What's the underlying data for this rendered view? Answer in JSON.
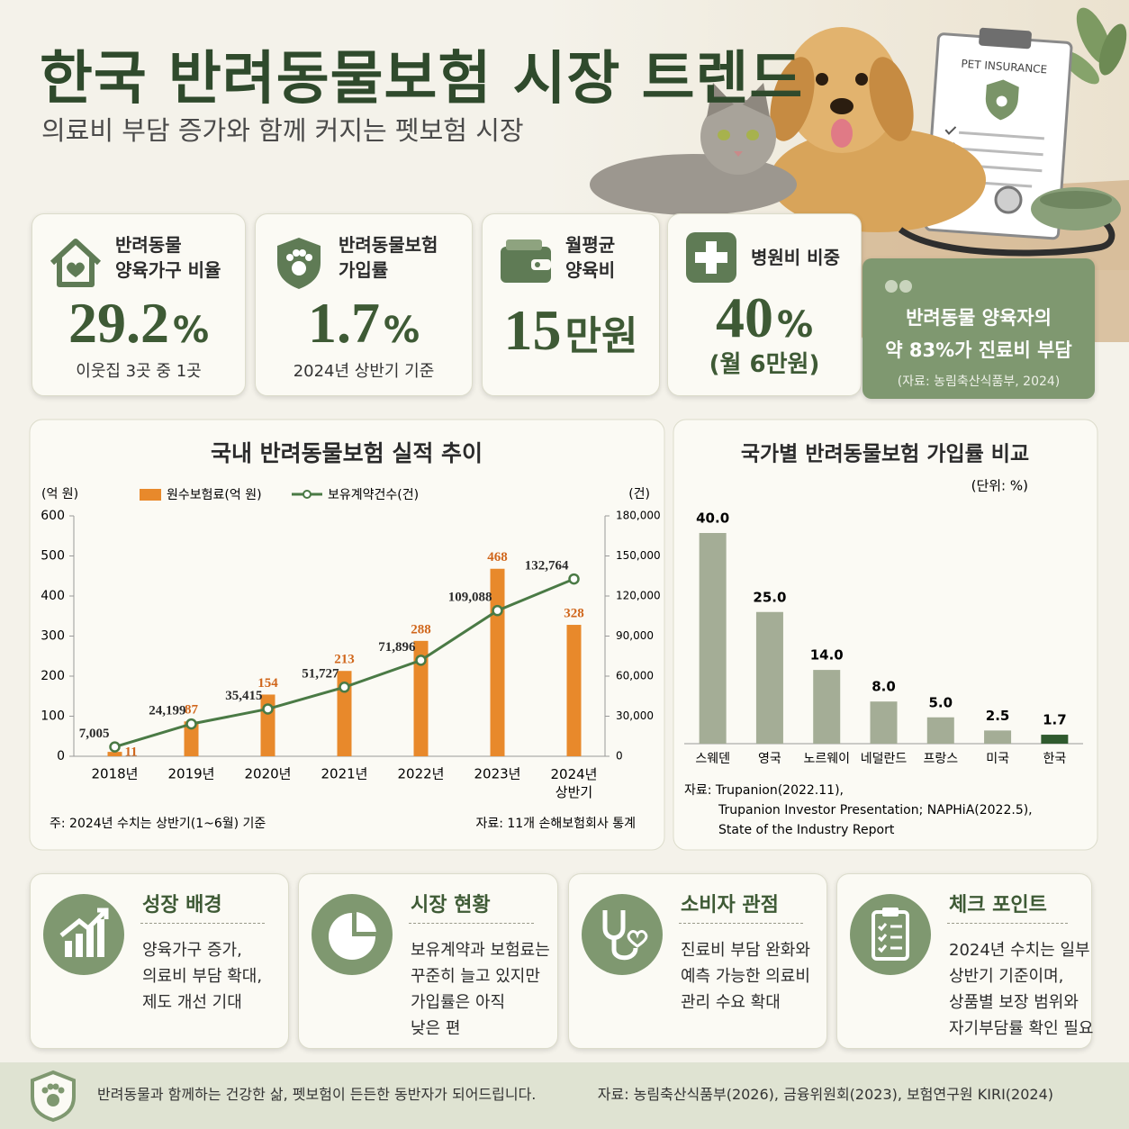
{
  "header": {
    "title": "한국 반려동물보험 시장 트렌드",
    "subtitle": "의료비 부담 증가와 함께 커지는 펫보험 시장",
    "image_label": "PET INSURANCE"
  },
  "stats": [
    {
      "label": [
        "반려동물",
        "양육가구 비율"
      ],
      "value": "29.2",
      "unit": "%",
      "note": "이웃집 3곳 중 1곳"
    },
    {
      "label": [
        "반려동물보험",
        "가입률"
      ],
      "value": "1.7",
      "unit": "%",
      "note": "2024년 상반기 기준"
    },
    {
      "label": [
        "월평균",
        "양육비"
      ],
      "value": "15",
      "unit": "만원"
    },
    {
      "label": [
        "병원비 비중"
      ],
      "value": "40",
      "unit": "%",
      "note": "(월 6만원)"
    }
  ],
  "quote": {
    "lines": [
      "반려동물 양육자의",
      "약 83%가 진료비 부담"
    ],
    "source": "(자료: 농림축산식품부, 2024)"
  },
  "chart_data": [
    {
      "type": "combo",
      "title": "국내 반려동물보험 실적 추이",
      "y_label": "(억 원)",
      "y2_label": "(건)",
      "categories": [
        "2018년",
        "2019년",
        "2020년",
        "2021년",
        "2022년",
        "2023년",
        "2024년 상반기"
      ],
      "series": [
        {
          "name": "원수보험료(억 원)",
          "type": "bar",
          "color": "#e8892b",
          "values": [
            11,
            87,
            154,
            213,
            288,
            468,
            328
          ]
        },
        {
          "name": "보유계약건수(건)",
          "type": "line",
          "axis": "y2",
          "color": "#4a7a45",
          "values": [
            7005,
            24199,
            35415,
            51727,
            71896,
            109088,
            132764
          ],
          "value_labels": [
            "7,005",
            "24,199",
            "35,415",
            "51,727",
            "71,896",
            "109,088",
            "132,764"
          ]
        }
      ],
      "ylim": [
        0,
        600
      ],
      "yticks": [
        0,
        100,
        200,
        300,
        400,
        500,
        600
      ],
      "y2lim": [
        0,
        180000
      ],
      "y2ticks": [
        0,
        {
          "value": 30000,
          "label": "30,000"
        },
        {
          "value": 60000,
          "label": "60,000"
        },
        {
          "value": 90000,
          "label": "90,000"
        },
        {
          "value": 120000,
          "label": "120,000"
        },
        {
          "value": 150000,
          "label": "150,000"
        },
        {
          "value": 180000,
          "label": "180,000"
        }
      ],
      "note": "주: 2024년 수치는 상반기(1~6월) 기준",
      "source": "자료: 11개 손해보험회사 통계"
    },
    {
      "type": "bar",
      "title": "국가별 반려동물보험 가입률 비교",
      "unit": "(단위: %)",
      "categories": [
        "스웨덴",
        "영국",
        "노르웨이",
        "네덜란드",
        "프랑스",
        "미국",
        "한국"
      ],
      "values": [
        40,
        25,
        14,
        8,
        5,
        2.5,
        1.7
      ],
      "value_labels": [
        "40.0",
        "25.0",
        "14.0",
        "8.0",
        "5.0",
        "2.5",
        "1.7"
      ],
      "colors": [
        "#a4ad96",
        "#a4ad96",
        "#a4ad96",
        "#a4ad96",
        "#a4ad96",
        "#a4ad96",
        "#2f5a2e"
      ],
      "source": [
        "자료: Trupanion(2022.11),",
        "Trupanion Investor Presentation; NAPHiA(2022.5),",
        "State of the Industry Report"
      ]
    }
  ],
  "cards": [
    {
      "title": "성장 배경",
      "lines": [
        "양육가구 증가,",
        "의료비 부담 확대,",
        "제도 개선 기대"
      ]
    },
    {
      "title": "시장 현황",
      "lines": [
        "보유계약과 보험료는",
        "꾸준히 늘고 있지만",
        "가입률은 아직",
        "낮은 편"
      ]
    },
    {
      "title": "소비자 관점",
      "lines": [
        "진료비 부담 완화와",
        "예측 가능한 의료비",
        "관리 수요 확대"
      ]
    },
    {
      "title": "체크 포인트",
      "lines": [
        "2024년 수치는 일부",
        "상반기 기준이며,",
        "상품별 보장 범위와",
        "자기부담률 확인 필요"
      ]
    }
  ],
  "footer": {
    "slogan": "반려동물과 함께하는 건강한 삶, 펫보험이 든든한 동반자가 되어드립니다.",
    "source": "자료: 농림축산식품부(2026), 금융위원회(2023), 보험연구원 KIRI(2024)"
  }
}
